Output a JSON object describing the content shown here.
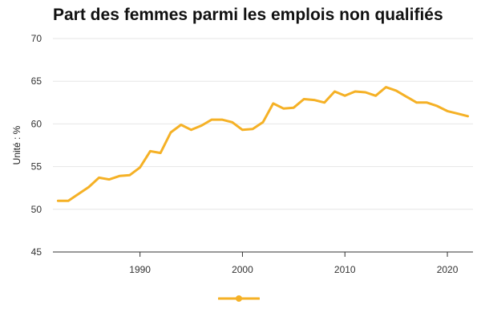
{
  "chart_data": {
    "type": "line",
    "title": "Part des femmes parmi les emplois non qualifiés",
    "xlabel": "",
    "ylabel": "Unité : %",
    "xlim": [
      1981.5,
      2022.5
    ],
    "ylim": [
      45,
      70
    ],
    "yticks": [
      45,
      50,
      55,
      60,
      65,
      70
    ],
    "xticks": [
      1990,
      2000,
      2010,
      2020
    ],
    "grid": true,
    "legend": "bottom-center",
    "colors": {
      "line": "#f5b126",
      "grid": "#e6e6e6",
      "axis": "#333333"
    },
    "series": [
      {
        "x": [
          1982,
          1983,
          1984,
          1985,
          1986,
          1987,
          1988,
          1989,
          1990,
          1991,
          1992,
          1993,
          1994,
          1995,
          1996,
          1997,
          1998,
          1999,
          2000,
          2001,
          2002,
          2003,
          2004,
          2005,
          2006,
          2007,
          2008,
          2009,
          2010,
          2011,
          2012,
          2013,
          2014,
          2015,
          2016,
          2017,
          2018,
          2019,
          2020,
          2021,
          2022
        ],
        "values": [
          51.0,
          51.0,
          51.8,
          52.6,
          53.7,
          53.5,
          53.9,
          54.0,
          54.9,
          56.8,
          56.6,
          59.0,
          59.9,
          59.3,
          59.8,
          60.5,
          60.5,
          60.2,
          59.3,
          59.4,
          60.2,
          62.4,
          61.8,
          61.9,
          62.9,
          62.8,
          62.5,
          63.8,
          63.3,
          63.8,
          63.7,
          63.3,
          64.3,
          63.9,
          63.2,
          62.5,
          62.5,
          62.1,
          61.5,
          61.2,
          60.9
        ]
      }
    ]
  }
}
